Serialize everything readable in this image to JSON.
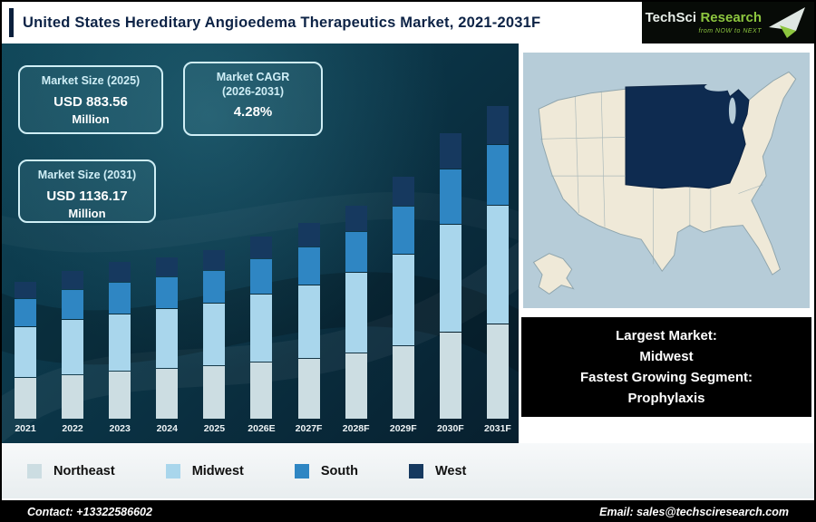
{
  "header": {
    "title": "United States Hereditary Angioedema Therapeutics Market, 2021-2031F",
    "logo": {
      "brand": "TechSci",
      "brand2": "Research",
      "tagline": "from NOW to NEXT"
    }
  },
  "stats": {
    "size_2025": {
      "label": "Market Size (2025)",
      "value": "USD 883.56",
      "unit": "Million"
    },
    "cagr": {
      "label_line1": "Market CAGR",
      "label_line2": "(2026-2031)",
      "value": "4.28%"
    },
    "size_2031": {
      "label": "Market Size (2031)",
      "value": "USD 1136.17",
      "unit": "Million"
    }
  },
  "chart_data": {
    "type": "bar",
    "stacked": true,
    "title": "United States Hereditary Angioedema Therapeutics Market, 2021-2031F",
    "xlabel": "",
    "ylabel": "",
    "axis_note": "y-axis unlabeled; segment values estimated from bar heights (relative units)",
    "ylim": [
      0,
      360
    ],
    "categories": [
      "2021",
      "2022",
      "2023",
      "2024",
      "2025",
      "2026E",
      "2027F",
      "2028F",
      "2029F",
      "2030F",
      "2031F"
    ],
    "series": [
      {
        "name": "Northeast",
        "color": "#ccdde2",
        "values": [
          45,
          48,
          52,
          55,
          58,
          62,
          66,
          72,
          80,
          95,
          104
        ]
      },
      {
        "name": "Midwest",
        "color": "#a9d6ec",
        "values": [
          55,
          60,
          62,
          65,
          68,
          74,
          80,
          88,
          100,
          118,
          130
        ]
      },
      {
        "name": "South",
        "color": "#2f86c3",
        "values": [
          30,
          32,
          34,
          34,
          35,
          38,
          41,
          44,
          52,
          60,
          66
        ]
      },
      {
        "name": "West",
        "color": "#16395f",
        "values": [
          18,
          20,
          22,
          21,
          22,
          24,
          26,
          28,
          32,
          39,
          42
        ]
      }
    ],
    "known_points": {
      "2025_total": "USD 883.56 Million",
      "2031_total": "USD 1136.17 Million",
      "cagr_2026_2031": "4.28%"
    },
    "legend_position": "bottom"
  },
  "map_panel": {
    "highlight_region": "Midwest",
    "note_lines": [
      "Largest Market:",
      "Midwest",
      "Fastest Growing Segment:",
      "Prophylaxis"
    ]
  },
  "footer": {
    "contact": "Contact: +13322586602",
    "email": "Email: sales@techsciresearch.com"
  }
}
